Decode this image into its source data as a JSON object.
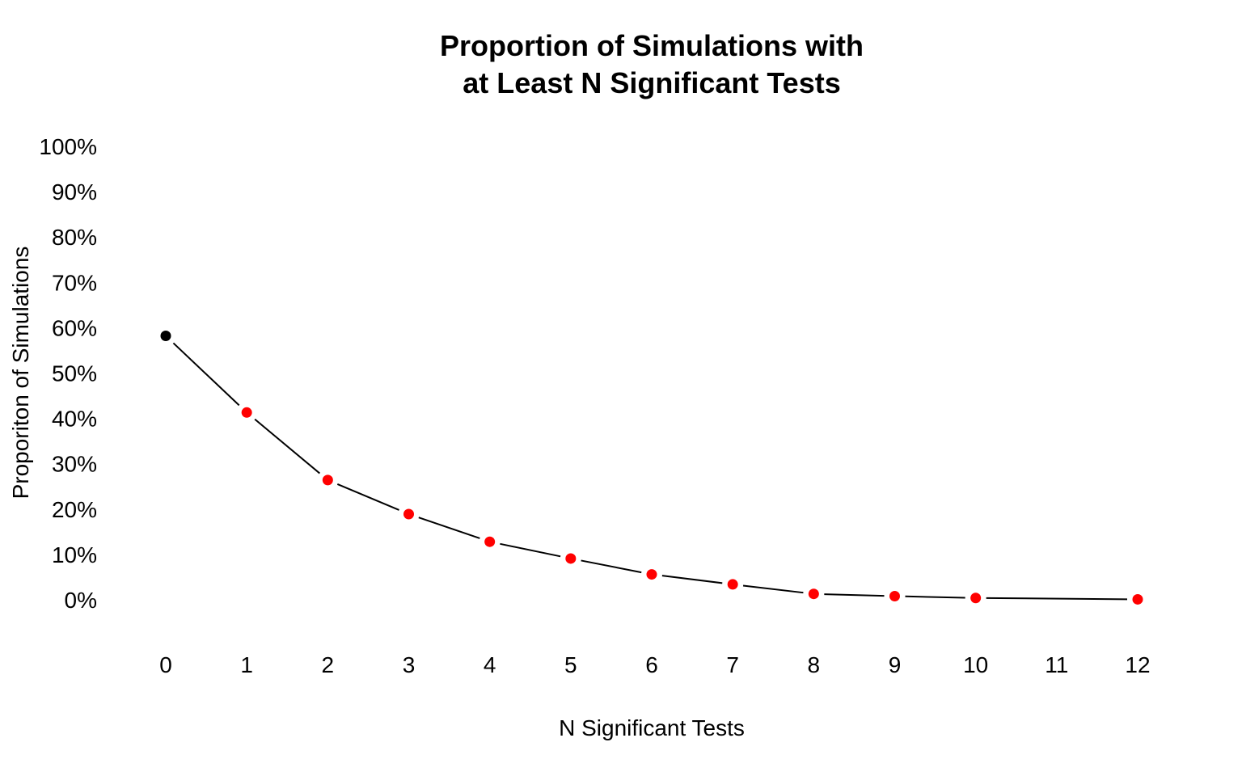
{
  "chart_data": {
    "type": "line",
    "title_lines": [
      "Proportion of Simulations with",
      "at Least N Significant Tests"
    ],
    "xlabel": "N Significant Tests",
    "ylabel": "Proporiton of Simulations",
    "x_ticks": [
      "0",
      "1",
      "2",
      "3",
      "4",
      "5",
      "6",
      "7",
      "8",
      "9",
      "10",
      "11",
      "12"
    ],
    "y_ticks": [
      "0%",
      "10%",
      "20%",
      "30%",
      "40%",
      "50%",
      "60%",
      "70%",
      "80%",
      "90%",
      "100%"
    ],
    "xlim": [
      0,
      12
    ],
    "ylim": [
      0,
      100
    ],
    "grid": false,
    "legend": "none",
    "series": [
      {
        "x": [
          0,
          1,
          2,
          3,
          4,
          5,
          6,
          7,
          8,
          9,
          10,
          12
        ],
        "y": [
          58.2,
          41.3,
          26.4,
          18.9,
          12.8,
          9.1,
          5.6,
          3.4,
          1.3,
          0.8,
          0.4,
          0.1
        ],
        "line_color": "#000000",
        "point_colors": [
          "#000000",
          "#ff0000",
          "#ff0000",
          "#ff0000",
          "#ff0000",
          "#ff0000",
          "#ff0000",
          "#ff0000",
          "#ff0000",
          "#ff0000",
          "#ff0000",
          "#ff0000"
        ]
      }
    ]
  }
}
